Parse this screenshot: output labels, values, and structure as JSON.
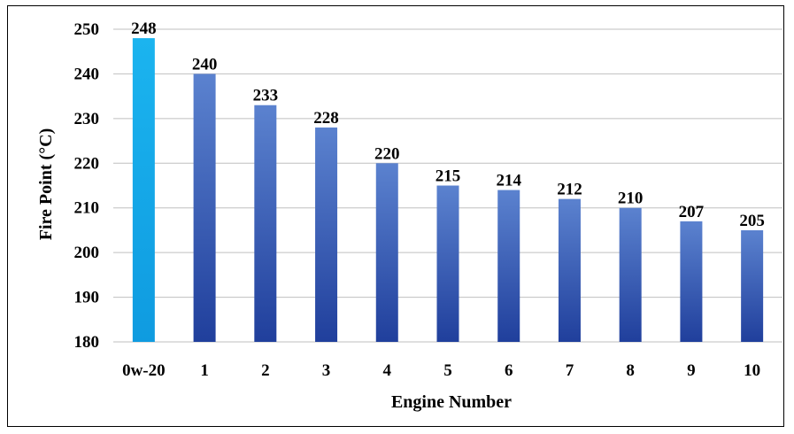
{
  "chart_data": {
    "type": "bar",
    "title": "",
    "xlabel": "Engine Number",
    "ylabel": "Fire Point (°C)",
    "categories": [
      "0w-20",
      "1",
      "2",
      "3",
      "4",
      "5",
      "6",
      "7",
      "8",
      "9",
      "10"
    ],
    "values": [
      248,
      240,
      233,
      228,
      220,
      215,
      214,
      212,
      210,
      207,
      205
    ],
    "ylim": [
      180,
      250
    ],
    "yticks": [
      180,
      190,
      200,
      210,
      220,
      230,
      240,
      250
    ],
    "grid": true,
    "legend": "none",
    "colors": {
      "highlight_top": "#1bb4ef",
      "highlight_bottom": "#0f9be0",
      "bar_top": "#5b82cf",
      "bar_bottom": "#203f9c",
      "grid": "#bfbfbf"
    }
  }
}
